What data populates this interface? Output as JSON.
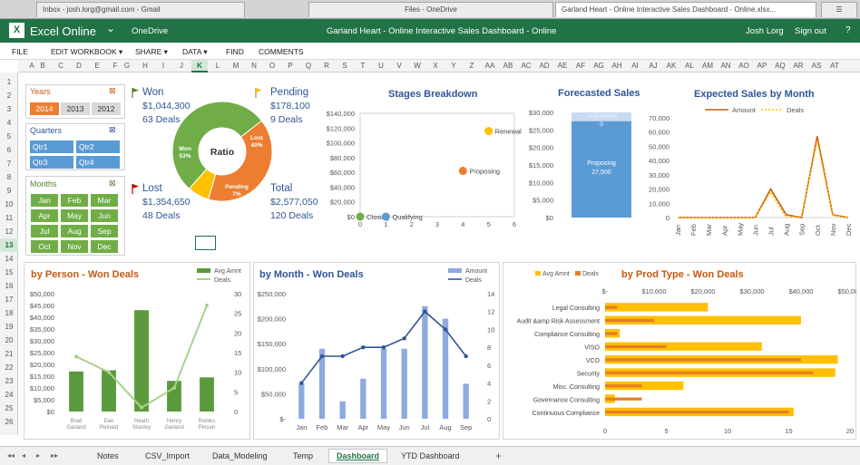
{
  "browser": {
    "tabs": [
      {
        "label": "Inbox - josh.lorg@gmail.com - Gmail"
      },
      {
        "label": "Files - OneDrive"
      },
      {
        "label": "Garland Heart - Online Interactive Sales Dashboard - Online.xlsx..."
      }
    ]
  },
  "app": {
    "name": "Excel Online",
    "onedrive": "OneDrive",
    "doc_title": "Garland Heart - Online Interactive Sales Dashboard - Online",
    "user": "Josh Lorg",
    "signout": "Sign out",
    "help": "?"
  },
  "menu": [
    "FILE",
    "EDIT WORKBOOK ▾",
    "SHARE ▾",
    "DATA ▾",
    "FIND",
    "COMMENTS"
  ],
  "columns": [
    "A",
    "B",
    "C",
    "D",
    "E",
    "F",
    "G",
    "H",
    "I",
    "J",
    "K",
    "L",
    "M",
    "N",
    "O",
    "P",
    "Q",
    "R",
    "S",
    "T",
    "U",
    "V",
    "W",
    "X",
    "Y",
    "Z",
    "AA",
    "AB",
    "AC",
    "AD",
    "AE",
    "AF",
    "AG",
    "AH",
    "AI",
    "AJ",
    "AK",
    "AL",
    "AM",
    "AN",
    "AO",
    "AP",
    "AQ",
    "AR",
    "AS",
    "AT"
  ],
  "selected_column": "K",
  "rows": [
    "1",
    "2",
    "3",
    "4",
    "5",
    "6",
    "7",
    "8",
    "9",
    "10",
    "11",
    "12",
    "13",
    "14",
    "15",
    "16",
    "17",
    "18",
    "19",
    "20",
    "21",
    "22",
    "23",
    "24",
    "25",
    "26"
  ],
  "selected_row": "13",
  "slicers": {
    "years": {
      "title": "Years",
      "items": [
        {
          "label": "2014",
          "selected": true
        },
        {
          "label": "2013",
          "selected": false
        },
        {
          "label": "2012",
          "selected": false
        }
      ]
    },
    "quarters": {
      "title": "Quarters",
      "items": [
        "Qtr1",
        "Qtr2",
        "Qtr3",
        "Qtr4"
      ]
    },
    "months": {
      "title": "Months",
      "items": [
        "Jan",
        "Feb",
        "Mar",
        "Apr",
        "May",
        "Jun",
        "Jul",
        "Aug",
        "Sep",
        "Oct",
        "Nov",
        "Dec"
      ]
    }
  },
  "kpi": {
    "won": {
      "label": "Won",
      "amount": "$1,044,300",
      "deals": "63 Deals"
    },
    "pending": {
      "label": "Pending",
      "amount": "$178,100",
      "deals": "9 Deals"
    },
    "lost": {
      "label": "Lost",
      "amount": "$1,354,650",
      "deals": "48 Deals"
    },
    "total": {
      "label": "Total",
      "amount": "$2,577,050",
      "deals": "120 Deals"
    }
  },
  "colors": {
    "won_green": "#70ad47",
    "lost_orange": "#ed7d31",
    "pending_yellow": "#ffc000",
    "kpi_blue": "#2f5597",
    "excel_green": "#217346",
    "bar_green": "#5b9a3c",
    "month_bar": "#8faadc",
    "month_line": "#2f5597",
    "gold": "#ffc000",
    "orange_bar": "#e67e22"
  },
  "chart_data": [
    {
      "type": "pie",
      "title": "Ratio",
      "categories": [
        "Won",
        "Lost",
        "Pending"
      ],
      "values": [
        53,
        40,
        7
      ],
      "labels": [
        "Won 53%",
        "Lost 40%",
        "Pending 7%"
      ]
    },
    {
      "type": "scatter",
      "title": "Stages Breakdown",
      "x_ticks": [
        "0",
        "1",
        "2",
        "3",
        "4",
        "5",
        "6"
      ],
      "y_ticks": [
        "$0",
        "$20,000",
        "$40,000",
        "$60,000",
        "$80,000",
        "$100,000",
        "$120,000",
        "$140,000"
      ],
      "xlim": [
        0,
        6
      ],
      "ylim": [
        0,
        140000
      ],
      "points": [
        {
          "name": "Closing",
          "x": 0,
          "y": 0,
          "color": "#70ad47"
        },
        {
          "name": "Qualifying",
          "x": 1,
          "y": 0,
          "color": "#5b9bd5"
        },
        {
          "name": "Proposing",
          "x": 4,
          "y": 62000,
          "color": "#ed7d31"
        },
        {
          "name": "Renewal",
          "x": 5,
          "y": 116000,
          "color": "#ffc000"
        }
      ]
    },
    {
      "type": "bar",
      "title": "Forecasted Sales",
      "y_ticks": [
        "$0",
        "$5,000",
        "$10,000",
        "$15,000",
        "$20,000",
        "$25,000",
        "$30,000"
      ],
      "ylim": [
        0,
        30000
      ],
      "segments": [
        {
          "name": "Proposing",
          "value": 27500,
          "label": "Proposing\n27,500",
          "color": "#5b9bd5"
        },
        {
          "name": "UnQualified",
          "value": 0,
          "label": "UnQualified\n0",
          "color": "#a5c3e8"
        }
      ]
    },
    {
      "type": "line",
      "title": "Expected Sales by Month",
      "legend": [
        "Amount",
        "Deals"
      ],
      "categories": [
        "Jan",
        "Feb",
        "Mar",
        "Apr",
        "May",
        "Jun",
        "Jul",
        "Aug",
        "Sep",
        "Oct",
        "Nov",
        "Dec"
      ],
      "y_ticks": [
        "0",
        "10,000",
        "20,000",
        "30,000",
        "40,000",
        "50,000",
        "60,000",
        "70,000"
      ],
      "ylim": [
        0,
        70000
      ],
      "series": [
        {
          "name": "Amount",
          "values": [
            0,
            0,
            0,
            0,
            0,
            0,
            20000,
            2000,
            0,
            57000,
            2000,
            0
          ],
          "color": "#c55a11"
        },
        {
          "name": "Deals",
          "values": [
            0,
            0,
            0,
            0,
            0,
            0,
            18000,
            0,
            1000,
            54000,
            1500,
            0
          ],
          "color": "#ffc000"
        }
      ]
    },
    {
      "type": "bar",
      "title": "by Person - Won Deals",
      "legend": [
        "Avg Amnt",
        "Deals"
      ],
      "categories": [
        "Brad Garland",
        "Dan Reinald",
        "Heath Stanley",
        "Henry Garland",
        "Robles Pinson"
      ],
      "y_ticks": [
        "$0",
        "$5,000",
        "$10,000",
        "$15,000",
        "$20,000",
        "$25,000",
        "$30,000",
        "$35,000",
        "$40,000",
        "$45,000",
        "$50,000"
      ],
      "y2_ticks": [
        "0",
        "5",
        "10",
        "15",
        "20",
        "25",
        "30"
      ],
      "ylim": [
        0,
        50000
      ],
      "y2lim": [
        0,
        30
      ],
      "series": [
        {
          "name": "Avg Amnt",
          "values": [
            17000,
            17500,
            43000,
            13000,
            14500
          ],
          "color": "#5b9a3c"
        },
        {
          "name": "Deals",
          "values": [
            14,
            10,
            1,
            6,
            27
          ],
          "color": "#a9d18e",
          "axis": "secondary"
        }
      ]
    },
    {
      "type": "bar",
      "title": "by Month - Won Deals",
      "legend": [
        "Amount",
        "Deals"
      ],
      "categories": [
        "Jan",
        "Feb",
        "Mar",
        "Apr",
        "May",
        "Jun",
        "Jul",
        "Aug",
        "Sep"
      ],
      "y_ticks": [
        "$-",
        "$50,000",
        "$100,000",
        "$150,000",
        "$200,000",
        "$250,000"
      ],
      "y2_ticks": [
        "0",
        "2",
        "4",
        "6",
        "8",
        "10",
        "12",
        "14"
      ],
      "ylim": [
        0,
        250000
      ],
      "y2lim": [
        0,
        14
      ],
      "series": [
        {
          "name": "Amount",
          "values": [
            70000,
            140000,
            35000,
            80000,
            140000,
            140000,
            225000,
            200000,
            70000
          ],
          "color": "#8faadc"
        },
        {
          "name": "Deals",
          "values": [
            4,
            7,
            7,
            8,
            8,
            9,
            12,
            10,
            7
          ],
          "color": "#2f5597",
          "axis": "secondary"
        }
      ]
    },
    {
      "type": "bar",
      "title": "by Prod Type - Won Deals",
      "legend": [
        "Avg Amnt",
        "Deals"
      ],
      "categories": [
        "Legal Consulting",
        "Audit &amp Risk Assessment",
        "Compliance Consulting",
        "VISO",
        "VCO",
        "Security",
        "Misc. Consulting",
        "Governance Consulting",
        "Continuous Compliance"
      ],
      "x_ticks": [
        "$-",
        "$10,000",
        "$20,000",
        "$30,000",
        "$40,000",
        "$50,000"
      ],
      "x2_ticks": [
        "0",
        "5",
        "10",
        "15",
        "20"
      ],
      "xlim": [
        0,
        50000
      ],
      "x2lim": [
        0,
        20
      ],
      "series": [
        {
          "name": "Avg Amnt",
          "values": [
            21000,
            40000,
            3000,
            32000,
            47500,
            47000,
            16000,
            2000,
            38500
          ],
          "color": "#ffc000"
        },
        {
          "name": "Deals",
          "values": [
            1,
            4,
            1,
            5,
            16,
            17,
            3,
            3,
            15
          ],
          "color": "#e67e22",
          "axis": "secondary"
        }
      ]
    }
  ],
  "sheet_tabs": [
    "Notes",
    "CSV_Import",
    "Data_Modeling",
    "Temp",
    "Dashboard",
    "YTD Dashboard"
  ],
  "active_sheet": "Dashboard",
  "sheet_nav": [
    "◂◂",
    "◂",
    "▸",
    "▸▸"
  ],
  "add_sheet": "+"
}
